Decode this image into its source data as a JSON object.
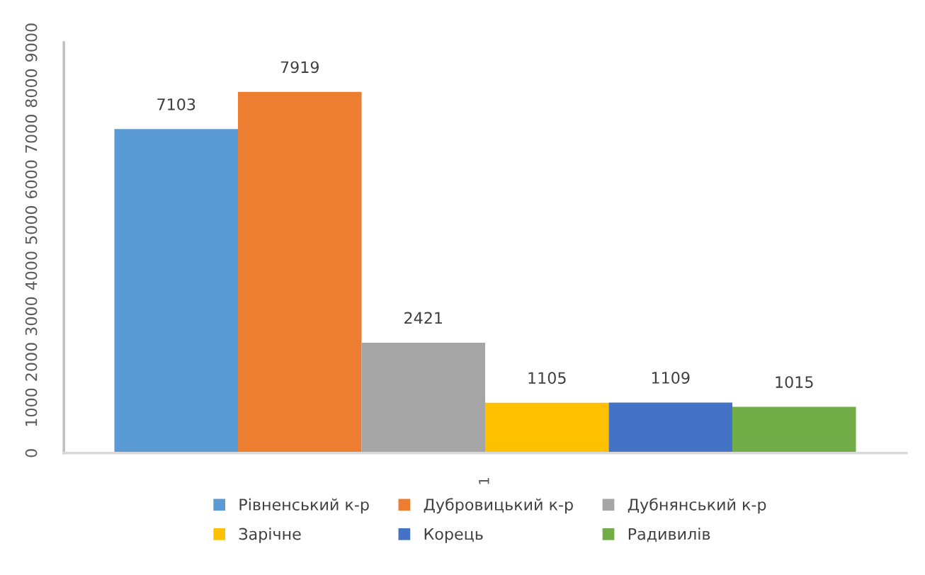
{
  "chart_data": {
    "type": "bar",
    "categories": [
      "1"
    ],
    "series": [
      {
        "name": "Рівненський к-р",
        "color": "#5b9bd5",
        "values": [
          7103
        ]
      },
      {
        "name": "Дубровицький к-р",
        "color": "#ed7d31",
        "values": [
          7919
        ]
      },
      {
        "name": "Дубнянський к-р",
        "color": "#a5a5a5",
        "values": [
          2421
        ]
      },
      {
        "name": "Зарічне",
        "color": "#ffc000",
        "values": [
          1105
        ]
      },
      {
        "name": "Корець",
        "color": "#4472c4",
        "values": [
          1109
        ]
      },
      {
        "name": "Радивилів",
        "color": "#70ad47",
        "values": [
          1015
        ]
      }
    ],
    "ylim": [
      0,
      9000
    ],
    "yticks": [
      0,
      1000,
      2000,
      3000,
      4000,
      5000,
      6000,
      7000,
      8000,
      9000
    ],
    "data_labels": true,
    "legend": "bottom",
    "grid": false
  }
}
